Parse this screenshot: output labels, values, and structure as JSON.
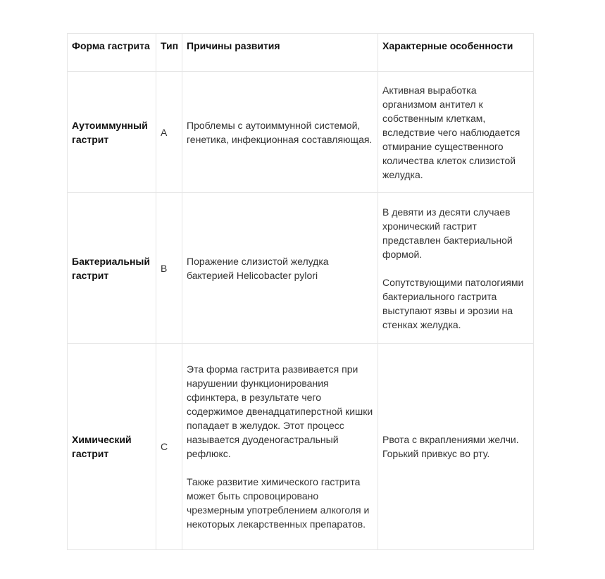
{
  "headers": [
    "Форма гастрита",
    "Тип",
    "Причины развития",
    "Характерные особенности"
  ],
  "rows": [
    {
      "form": "Аутоиммунный гастрит",
      "type": "A",
      "causes": [
        "Проблемы с аутоиммунной системой, генетика, инфекционная составляющая."
      ],
      "features": [
        "Активная выработка организмом антител к собственным клеткам, вследствие чего наблюдается отмирание существенного количества клеток слизистой желудка."
      ]
    },
    {
      "form": "Бактериальный гастрит",
      "type": "B",
      "causes": [
        "Поражение слизистой желудка бактерией Helicobacter pylori"
      ],
      "features": [
        "В девяти из десяти случаев хронический гастрит представлен бактериальной формой.",
        "Сопутствующими патологиями бактериального гастрита выступают язвы и эрозии на стенках желудка."
      ]
    },
    {
      "form": "Химический гастрит",
      "type": "C",
      "causes": [
        "Эта форма гастрита развивается при нарушении функционирования сфинктера, в результате чего содержимое двенадцатиперстной кишки попадает в желудок. Этот процесс называется дуоденогастральный рефлюкс.",
        "Также развитие химического гастрита может быть спровоцировано чрезмерным употреблением алкоголя и некоторых лекарственных препаратов."
      ],
      "features": [
        "Рвота с вкраплениями желчи. Горький привкус во рту."
      ]
    }
  ]
}
